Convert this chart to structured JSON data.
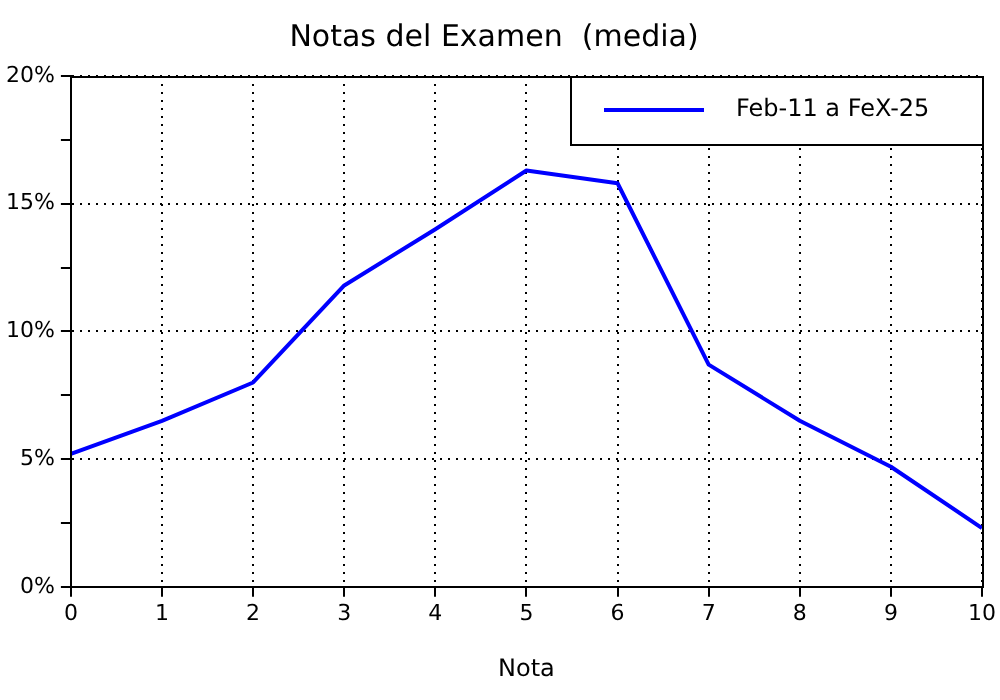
{
  "chart_data": {
    "type": "line",
    "title": "Notas del Examen  (media)",
    "xlabel": "Nota",
    "x": [
      0,
      1,
      2,
      3,
      4,
      5,
      6,
      7,
      8,
      9,
      10
    ],
    "series": [
      {
        "name": "Feb-11 a FeX-25",
        "color": "#0000ff",
        "values": [
          5.2,
          6.5,
          8.0,
          11.8,
          14.0,
          16.3,
          15.8,
          8.7,
          6.5,
          4.7,
          2.3
        ]
      }
    ],
    "xlim": [
      0,
      10
    ],
    "xticks": [
      0,
      1,
      2,
      3,
      4,
      5,
      6,
      7,
      8,
      9,
      10
    ],
    "ylim": [
      0,
      20
    ],
    "yticks": [
      {
        "value": 0,
        "label": "0%"
      },
      {
        "value": 2.5,
        "label": null
      },
      {
        "value": 5,
        "label": "5%"
      },
      {
        "value": 7.5,
        "label": null
      },
      {
        "value": 10,
        "label": "10%"
      },
      {
        "value": 12.5,
        "label": null
      },
      {
        "value": 15,
        "label": "15%"
      },
      {
        "value": 17.5,
        "label": null
      },
      {
        "value": 20,
        "label": "20%"
      }
    ],
    "grid": true,
    "legend": "top right",
    "marker": "none",
    "line_style": "solid"
  }
}
